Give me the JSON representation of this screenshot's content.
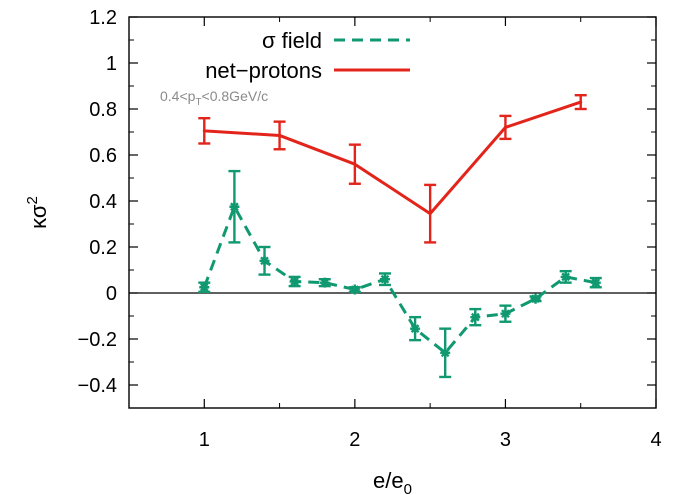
{
  "chart_data": {
    "type": "line",
    "xlabel": {
      "base": "e/e",
      "sub": "0"
    },
    "ylabel": {
      "base": "κσ",
      "sup": "2"
    },
    "xlim": [
      0.5,
      4
    ],
    "ylim": [
      -0.5,
      1.2
    ],
    "xticks": [
      1,
      2,
      3,
      4
    ],
    "xtick_labels": [
      "1",
      "2",
      "3",
      "4"
    ],
    "yticks": [
      -0.4,
      -0.2,
      0,
      0.2,
      0.4,
      0.6,
      0.8,
      1,
      1.2
    ],
    "ytick_labels": [
      "−0.4",
      "−0.2",
      "0",
      "0.2",
      "0.4",
      "0.6",
      "0.8",
      "1",
      "1.2"
    ],
    "zero_line": true,
    "grid": false,
    "legend_position": "top-right",
    "annotation": {
      "t1": "0.4<p",
      "sub": "T",
      "t2": "<0.8GeV/c"
    },
    "series": [
      {
        "name": "σ field",
        "color": "#109970",
        "style": "dashed",
        "marker": "star",
        "x": [
          1.0,
          1.2,
          1.4,
          1.6,
          1.8,
          2.0,
          2.2,
          2.4,
          2.6,
          2.8,
          3.0,
          3.2,
          3.4,
          3.6
        ],
        "y": [
          0.025,
          0.375,
          0.14,
          0.05,
          0.045,
          0.015,
          0.06,
          -0.155,
          -0.26,
          -0.105,
          -0.09,
          -0.025,
          0.07,
          0.045
        ],
        "err": [
          0.02,
          0.155,
          0.06,
          0.02,
          0.015,
          0.01,
          0.025,
          0.05,
          0.105,
          0.035,
          0.035,
          0.01,
          0.025,
          0.02
        ]
      },
      {
        "name": "net−protons",
        "color": "#e3241b",
        "style": "solid",
        "marker": "none",
        "x": [
          1.0,
          1.5,
          2.0,
          2.5,
          3.0,
          3.5
        ],
        "y": [
          0.705,
          0.685,
          0.56,
          0.345,
          0.72,
          0.83
        ],
        "err": [
          0.055,
          0.06,
          0.085,
          0.125,
          0.05,
          0.03
        ]
      }
    ]
  }
}
